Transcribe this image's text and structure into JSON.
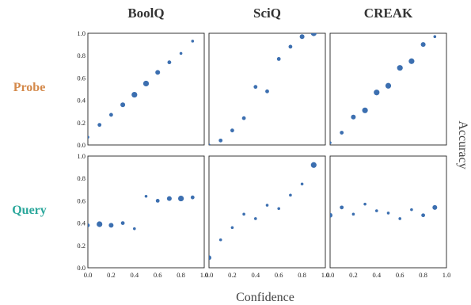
{
  "chart_data": {
    "type": "scatter",
    "columns": [
      "BoolQ",
      "SciQ",
      "CREAK"
    ],
    "rows": [
      {
        "label": "Probe",
        "color": "#d4894a"
      },
      {
        "label": "Query",
        "color": "#2aa79b"
      }
    ],
    "xlabel": "Confidence",
    "ylabel": "Accuracy",
    "xlim": [
      0,
      1
    ],
    "ylim": [
      0,
      1
    ],
    "x_ticks": [
      "0.0",
      "0.2",
      "0.4",
      "0.6",
      "0.8",
      "1.0"
    ],
    "y_ticks": [
      "0.0",
      "0.2",
      "0.4",
      "0.6",
      "0.8",
      "1.0"
    ],
    "marker_color": "#3c6fb0",
    "marker_size_meaning": "bin count (relative, 1-5)",
    "panels": [
      {
        "row": "Probe",
        "column": "BoolQ",
        "points": [
          {
            "x": 0.0,
            "y": 0.07,
            "s": 1
          },
          {
            "x": 0.1,
            "y": 0.18,
            "s": 2
          },
          {
            "x": 0.2,
            "y": 0.27,
            "s": 2
          },
          {
            "x": 0.3,
            "y": 0.36,
            "s": 3
          },
          {
            "x": 0.4,
            "y": 0.45,
            "s": 4
          },
          {
            "x": 0.5,
            "y": 0.55,
            "s": 4
          },
          {
            "x": 0.6,
            "y": 0.65,
            "s": 3
          },
          {
            "x": 0.7,
            "y": 0.74,
            "s": 2
          },
          {
            "x": 0.8,
            "y": 0.82,
            "s": 1
          },
          {
            "x": 0.9,
            "y": 0.93,
            "s": 1
          }
        ]
      },
      {
        "row": "Probe",
        "column": "SciQ",
        "points": [
          {
            "x": 0.0,
            "y": 0.0,
            "s": 1
          },
          {
            "x": 0.1,
            "y": 0.04,
            "s": 2
          },
          {
            "x": 0.2,
            "y": 0.13,
            "s": 2
          },
          {
            "x": 0.3,
            "y": 0.24,
            "s": 2
          },
          {
            "x": 0.4,
            "y": 0.52,
            "s": 2
          },
          {
            "x": 0.5,
            "y": 0.48,
            "s": 2
          },
          {
            "x": 0.6,
            "y": 0.77,
            "s": 2
          },
          {
            "x": 0.7,
            "y": 0.88,
            "s": 2
          },
          {
            "x": 0.8,
            "y": 0.97,
            "s": 3
          },
          {
            "x": 0.9,
            "y": 1.0,
            "s": 4
          }
        ]
      },
      {
        "row": "Probe",
        "column": "CREAK",
        "points": [
          {
            "x": 0.0,
            "y": 0.02,
            "s": 1
          },
          {
            "x": 0.1,
            "y": 0.11,
            "s": 2
          },
          {
            "x": 0.2,
            "y": 0.25,
            "s": 3
          },
          {
            "x": 0.3,
            "y": 0.31,
            "s": 4
          },
          {
            "x": 0.4,
            "y": 0.47,
            "s": 4
          },
          {
            "x": 0.5,
            "y": 0.53,
            "s": 4
          },
          {
            "x": 0.6,
            "y": 0.69,
            "s": 4
          },
          {
            "x": 0.7,
            "y": 0.75,
            "s": 4
          },
          {
            "x": 0.8,
            "y": 0.9,
            "s": 3
          },
          {
            "x": 0.9,
            "y": 0.97,
            "s": 1
          }
        ]
      },
      {
        "row": "Query",
        "column": "BoolQ",
        "points": [
          {
            "x": 0.0,
            "y": 0.38,
            "s": 2
          },
          {
            "x": 0.1,
            "y": 0.39,
            "s": 4
          },
          {
            "x": 0.2,
            "y": 0.38,
            "s": 3
          },
          {
            "x": 0.3,
            "y": 0.4,
            "s": 2
          },
          {
            "x": 0.4,
            "y": 0.35,
            "s": 1
          },
          {
            "x": 0.5,
            "y": 0.64,
            "s": 1
          },
          {
            "x": 0.6,
            "y": 0.6,
            "s": 2
          },
          {
            "x": 0.7,
            "y": 0.62,
            "s": 3
          },
          {
            "x": 0.8,
            "y": 0.62,
            "s": 4
          },
          {
            "x": 0.9,
            "y": 0.63,
            "s": 2
          }
        ]
      },
      {
        "row": "Query",
        "column": "SciQ",
        "points": [
          {
            "x": 0.0,
            "y": 0.09,
            "s": 3
          },
          {
            "x": 0.1,
            "y": 0.25,
            "s": 1
          },
          {
            "x": 0.2,
            "y": 0.36,
            "s": 1
          },
          {
            "x": 0.3,
            "y": 0.48,
            "s": 1
          },
          {
            "x": 0.4,
            "y": 0.44,
            "s": 1
          },
          {
            "x": 0.5,
            "y": 0.56,
            "s": 1
          },
          {
            "x": 0.6,
            "y": 0.53,
            "s": 1
          },
          {
            "x": 0.7,
            "y": 0.65,
            "s": 1
          },
          {
            "x": 0.8,
            "y": 0.75,
            "s": 1
          },
          {
            "x": 0.9,
            "y": 0.92,
            "s": 4
          }
        ]
      },
      {
        "row": "Query",
        "column": "CREAK",
        "points": [
          {
            "x": 0.0,
            "y": 0.47,
            "s": 3
          },
          {
            "x": 0.1,
            "y": 0.54,
            "s": 2
          },
          {
            "x": 0.2,
            "y": 0.48,
            "s": 1
          },
          {
            "x": 0.3,
            "y": 0.57,
            "s": 1
          },
          {
            "x": 0.4,
            "y": 0.51,
            "s": 1
          },
          {
            "x": 0.5,
            "y": 0.49,
            "s": 1
          },
          {
            "x": 0.6,
            "y": 0.44,
            "s": 1
          },
          {
            "x": 0.7,
            "y": 0.52,
            "s": 1
          },
          {
            "x": 0.8,
            "y": 0.47,
            "s": 2
          },
          {
            "x": 0.9,
            "y": 0.54,
            "s": 3
          }
        ]
      }
    ]
  }
}
